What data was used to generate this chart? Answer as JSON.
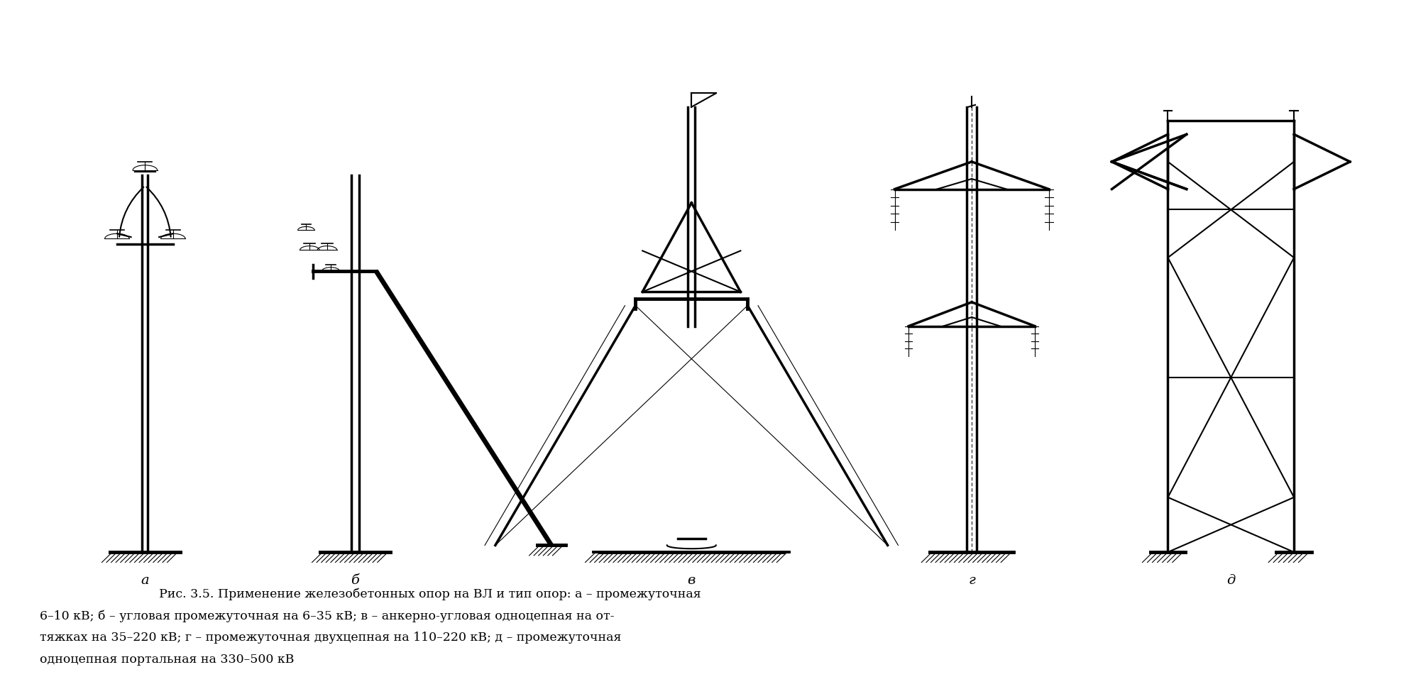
{
  "background_color": "#ffffff",
  "line_color": "#000000",
  "figure_width": 19.88,
  "figure_height": 9.79,
  "caption_line1": "Рис. 3.5. Применение железобетонных опор на ВЛ и тип опор: а – промежуточная",
  "caption_line2": "6–10 кВ; б – угловая промежуточная на 6–35 кВ; в – анкерно-угловая одноцепная на от-",
  "caption_line3": "тяжках на 35–220 кВ; г – промежуточная двухцепная на 110–220 кВ; д – промежуточная",
  "caption_line4": "одноцепная портальная на 330–500 кВ",
  "labels": [
    "а",
    "б",
    "в",
    "г",
    "д"
  ]
}
